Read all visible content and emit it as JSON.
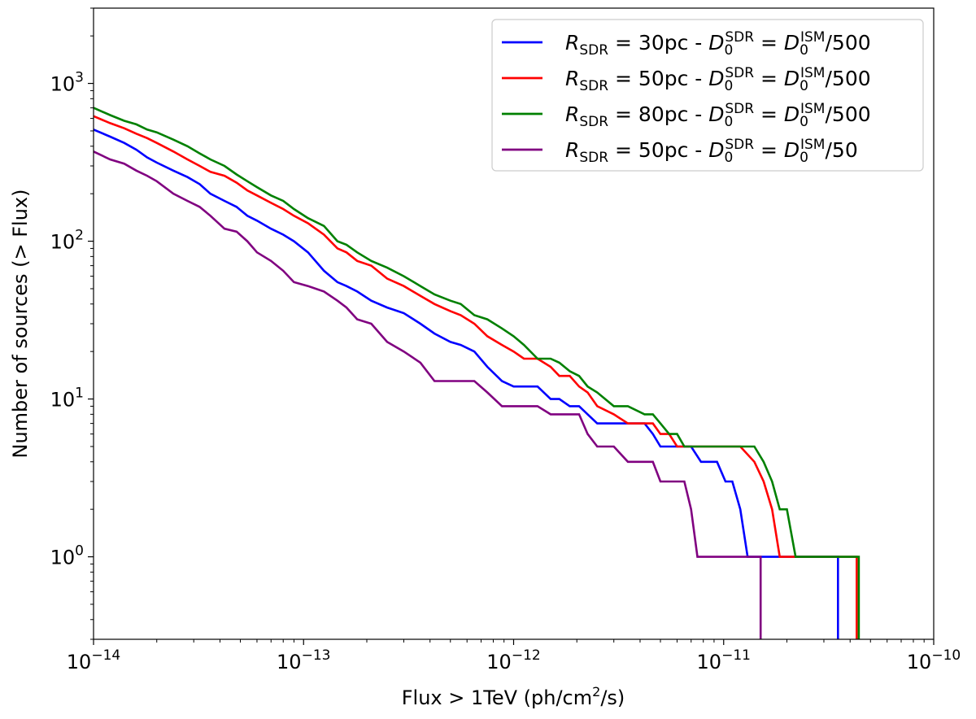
{
  "chart_data": {
    "type": "line",
    "xscale": "log",
    "yscale": "log",
    "xlim": [
      1e-14,
      1e-10
    ],
    "ylim": [
      0.3,
      3000
    ],
    "xlabel": {
      "prefix": "Flux > 1TeV (ph/cm",
      "sup": "2",
      "suffix": "/s)"
    },
    "ylabel": "Number of sources (> Flux)",
    "grid": false,
    "legend_position": "top-right",
    "x_ticks": [
      {
        "value": 1e-14,
        "base": "10",
        "exp": "−14"
      },
      {
        "value": 1e-13,
        "base": "10",
        "exp": "−13"
      },
      {
        "value": 1e-12,
        "base": "10",
        "exp": "−12"
      },
      {
        "value": 1e-11,
        "base": "10",
        "exp": "−11"
      },
      {
        "value": 1e-10,
        "base": "10",
        "exp": "−10"
      }
    ],
    "y_ticks": [
      {
        "value": 1,
        "base": "10",
        "exp": "0"
      },
      {
        "value": 10,
        "base": "10",
        "exp": "1"
      },
      {
        "value": 100,
        "base": "10",
        "exp": "2"
      },
      {
        "value": 1000,
        "base": "10",
        "exp": "3"
      }
    ],
    "series": [
      {
        "name": "R_SDR = 30pc - D0_SDR = D0_ISM/500",
        "legend": {
          "R": "R",
          "Rsub": "SDR",
          "rest1": " = 30pc - ",
          "D": "D",
          "Dsub": "0",
          "Dsup": "SDR",
          "eq": " = ",
          "D2": "D",
          "D2sub": "0",
          "D2sup": "ISM",
          "tail": "/500"
        },
        "color": "#0000ff",
        "x": [
          1e-14,
          1.2e-14,
          1.4e-14,
          1.6e-14,
          1.8e-14,
          2e-14,
          2.4e-14,
          2.8e-14,
          3.2e-14,
          3.6e-14,
          4.2e-14,
          4.8e-14,
          5.4e-14,
          6e-14,
          7e-14,
          8e-14,
          9e-14,
          1.05e-13,
          1.25e-13,
          1.45e-13,
          1.6e-13,
          1.8e-13,
          2.1e-13,
          2.5e-13,
          3e-13,
          3.6e-13,
          4.2e-13,
          5e-13,
          5.6e-13,
          6.5e-13,
          7.5e-13,
          8.8e-13,
          1e-12,
          1.12e-12,
          1.3e-12,
          1.5e-12,
          1.65e-12,
          1.85e-12,
          2.05e-12,
          2.25e-12,
          2.5e-12,
          3e-12,
          3.5e-12,
          4.2e-12,
          4.6e-12,
          5e-12,
          5.5e-12,
          6e-12,
          6.5e-12,
          7e-12,
          7.8e-12,
          8.5e-12,
          9.3e-12,
          1.02e-11,
          1.1e-11,
          1.2e-11,
          1.3e-11,
          1.38e-11,
          3.5e-11,
          3.5e-11
        ],
        "y": [
          510,
          460,
          420,
          380,
          340,
          315,
          280,
          255,
          230,
          200,
          180,
          165,
          145,
          135,
          120,
          110,
          100,
          85,
          65,
          55,
          52,
          48,
          42,
          38,
          35,
          30,
          26,
          23,
          22,
          20,
          16,
          13,
          12,
          12,
          12,
          10,
          10,
          9,
          9,
          8,
          7,
          7,
          7,
          7,
          6,
          5,
          5,
          5,
          5,
          5,
          4,
          4,
          4,
          3,
          3,
          2,
          1,
          1,
          1,
          0.3
        ]
      },
      {
        "name": "R_SDR = 50pc - D0_SDR = D0_ISM/500",
        "legend": {
          "R": "R",
          "Rsub": "SDR",
          "rest1": " = 50pc - ",
          "D": "D",
          "Dsub": "0",
          "Dsup": "SDR",
          "eq": " = ",
          "D2": "D",
          "D2sub": "0",
          "D2sup": "ISM",
          "tail": "/500"
        },
        "color": "#ff0000",
        "x": [
          1e-14,
          1.2e-14,
          1.4e-14,
          1.6e-14,
          1.8e-14,
          2e-14,
          2.4e-14,
          2.8e-14,
          3.2e-14,
          3.6e-14,
          4.2e-14,
          4.8e-14,
          5.4e-14,
          6e-14,
          7e-14,
          8e-14,
          9e-14,
          1.05e-13,
          1.25e-13,
          1.45e-13,
          1.6e-13,
          1.8e-13,
          2.1e-13,
          2.5e-13,
          3e-13,
          3.6e-13,
          4.2e-13,
          5e-13,
          5.6e-13,
          6.5e-13,
          7.5e-13,
          8.8e-13,
          1e-12,
          1.12e-12,
          1.3e-12,
          1.5e-12,
          1.65e-12,
          1.85e-12,
          2.05e-12,
          2.25e-12,
          2.5e-12,
          3e-12,
          3.5e-12,
          4.2e-12,
          4.6e-12,
          5e-12,
          5.5e-12,
          6e-12,
          8e-12,
          1e-11,
          1.2e-11,
          1.4e-11,
          1.55e-11,
          1.7e-11,
          1.85e-11,
          4.3e-11,
          4.3e-11
        ],
        "y": [
          620,
          560,
          520,
          480,
          450,
          420,
          370,
          330,
          300,
          275,
          260,
          235,
          210,
          195,
          175,
          160,
          145,
          130,
          110,
          90,
          85,
          75,
          70,
          58,
          52,
          45,
          40,
          36,
          34,
          30,
          25,
          22,
          20,
          18,
          18,
          16,
          14,
          14,
          12,
          11,
          9,
          8,
          7,
          7,
          7,
          6,
          6,
          5,
          5,
          5,
          5,
          4,
          3,
          2,
          1,
          1,
          0.3
        ]
      },
      {
        "name": "R_SDR = 80pc - D0_SDR = D0_ISM/500",
        "legend": {
          "R": "R",
          "Rsub": "SDR",
          "rest1": " = 80pc - ",
          "D": "D",
          "Dsub": "0",
          "Dsup": "SDR",
          "eq": " = ",
          "D2": "D",
          "D2sub": "0",
          "D2sup": "ISM",
          "tail": "/500"
        },
        "color": "#008000",
        "x": [
          1e-14,
          1.2e-14,
          1.4e-14,
          1.6e-14,
          1.8e-14,
          2e-14,
          2.4e-14,
          2.8e-14,
          3.2e-14,
          3.6e-14,
          4.2e-14,
          4.8e-14,
          5.4e-14,
          6e-14,
          7e-14,
          8e-14,
          9e-14,
          1.05e-13,
          1.25e-13,
          1.45e-13,
          1.6e-13,
          1.8e-13,
          2.1e-13,
          2.5e-13,
          3e-13,
          3.6e-13,
          4.2e-13,
          5e-13,
          5.6e-13,
          6.5e-13,
          7.5e-13,
          8.8e-13,
          1e-12,
          1.12e-12,
          1.3e-12,
          1.5e-12,
          1.65e-12,
          1.85e-12,
          2.05e-12,
          2.25e-12,
          2.5e-12,
          3e-12,
          3.5e-12,
          4.2e-12,
          4.6e-12,
          5e-12,
          5.5e-12,
          6e-12,
          6.5e-12,
          8e-12,
          1e-11,
          1.2e-11,
          1.4e-11,
          1.55e-11,
          1.7e-11,
          1.85e-11,
          2e-11,
          2.2e-11,
          2.4e-11,
          4.4e-11,
          4.4e-11
        ],
        "y": [
          700,
          630,
          580,
          550,
          510,
          490,
          440,
          400,
          360,
          330,
          300,
          265,
          240,
          220,
          195,
          180,
          160,
          140,
          125,
          100,
          95,
          85,
          75,
          68,
          60,
          52,
          46,
          42,
          40,
          34,
          32,
          28,
          25,
          22,
          18,
          18,
          17,
          15,
          14,
          12,
          11,
          9,
          9,
          8,
          8,
          7,
          6,
          6,
          5,
          5,
          5,
          5,
          5,
          4,
          3,
          2,
          2,
          1,
          1,
          1,
          0.3
        ]
      },
      {
        "name": "R_SDR = 50pc - D0_SDR = D0_ISM/50",
        "legend": {
          "R": "R",
          "Rsub": "SDR",
          "rest1": " = 50pc - ",
          "D": "D",
          "Dsub": "0",
          "Dsup": "SDR",
          "eq": " = ",
          "D2": "D",
          "D2sub": "0",
          "D2sup": "ISM",
          "tail": "/50"
        },
        "color": "#800080",
        "x": [
          1e-14,
          1.2e-14,
          1.4e-14,
          1.6e-14,
          1.8e-14,
          2e-14,
          2.4e-14,
          2.8e-14,
          3.2e-14,
          3.6e-14,
          4.2e-14,
          4.8e-14,
          5.4e-14,
          6e-14,
          7e-14,
          8e-14,
          9e-14,
          1.05e-13,
          1.25e-13,
          1.45e-13,
          1.6e-13,
          1.8e-13,
          2.1e-13,
          2.5e-13,
          3e-13,
          3.6e-13,
          4.2e-13,
          5e-13,
          5.6e-13,
          6.5e-13,
          7.5e-13,
          8.8e-13,
          1e-12,
          1.12e-12,
          1.3e-12,
          1.5e-12,
          1.65e-12,
          1.85e-12,
          2.05e-12,
          2.25e-12,
          2.5e-12,
          3e-12,
          3.5e-12,
          4.2e-12,
          4.6e-12,
          5e-12,
          5.5e-12,
          6e-12,
          6.5e-12,
          7e-12,
          7.5e-12,
          1.5e-11,
          1.5e-11
        ],
        "y": [
          370,
          330,
          310,
          280,
          260,
          240,
          200,
          180,
          165,
          145,
          120,
          115,
          100,
          85,
          75,
          65,
          55,
          52,
          48,
          42,
          38,
          32,
          30,
          23,
          20,
          17,
          13,
          13,
          13,
          13,
          11,
          9,
          9,
          9,
          9,
          8,
          8,
          8,
          8,
          6,
          5,
          5,
          4,
          4,
          4,
          3,
          3,
          3,
          3,
          2,
          1,
          1,
          0.3
        ]
      }
    ]
  }
}
